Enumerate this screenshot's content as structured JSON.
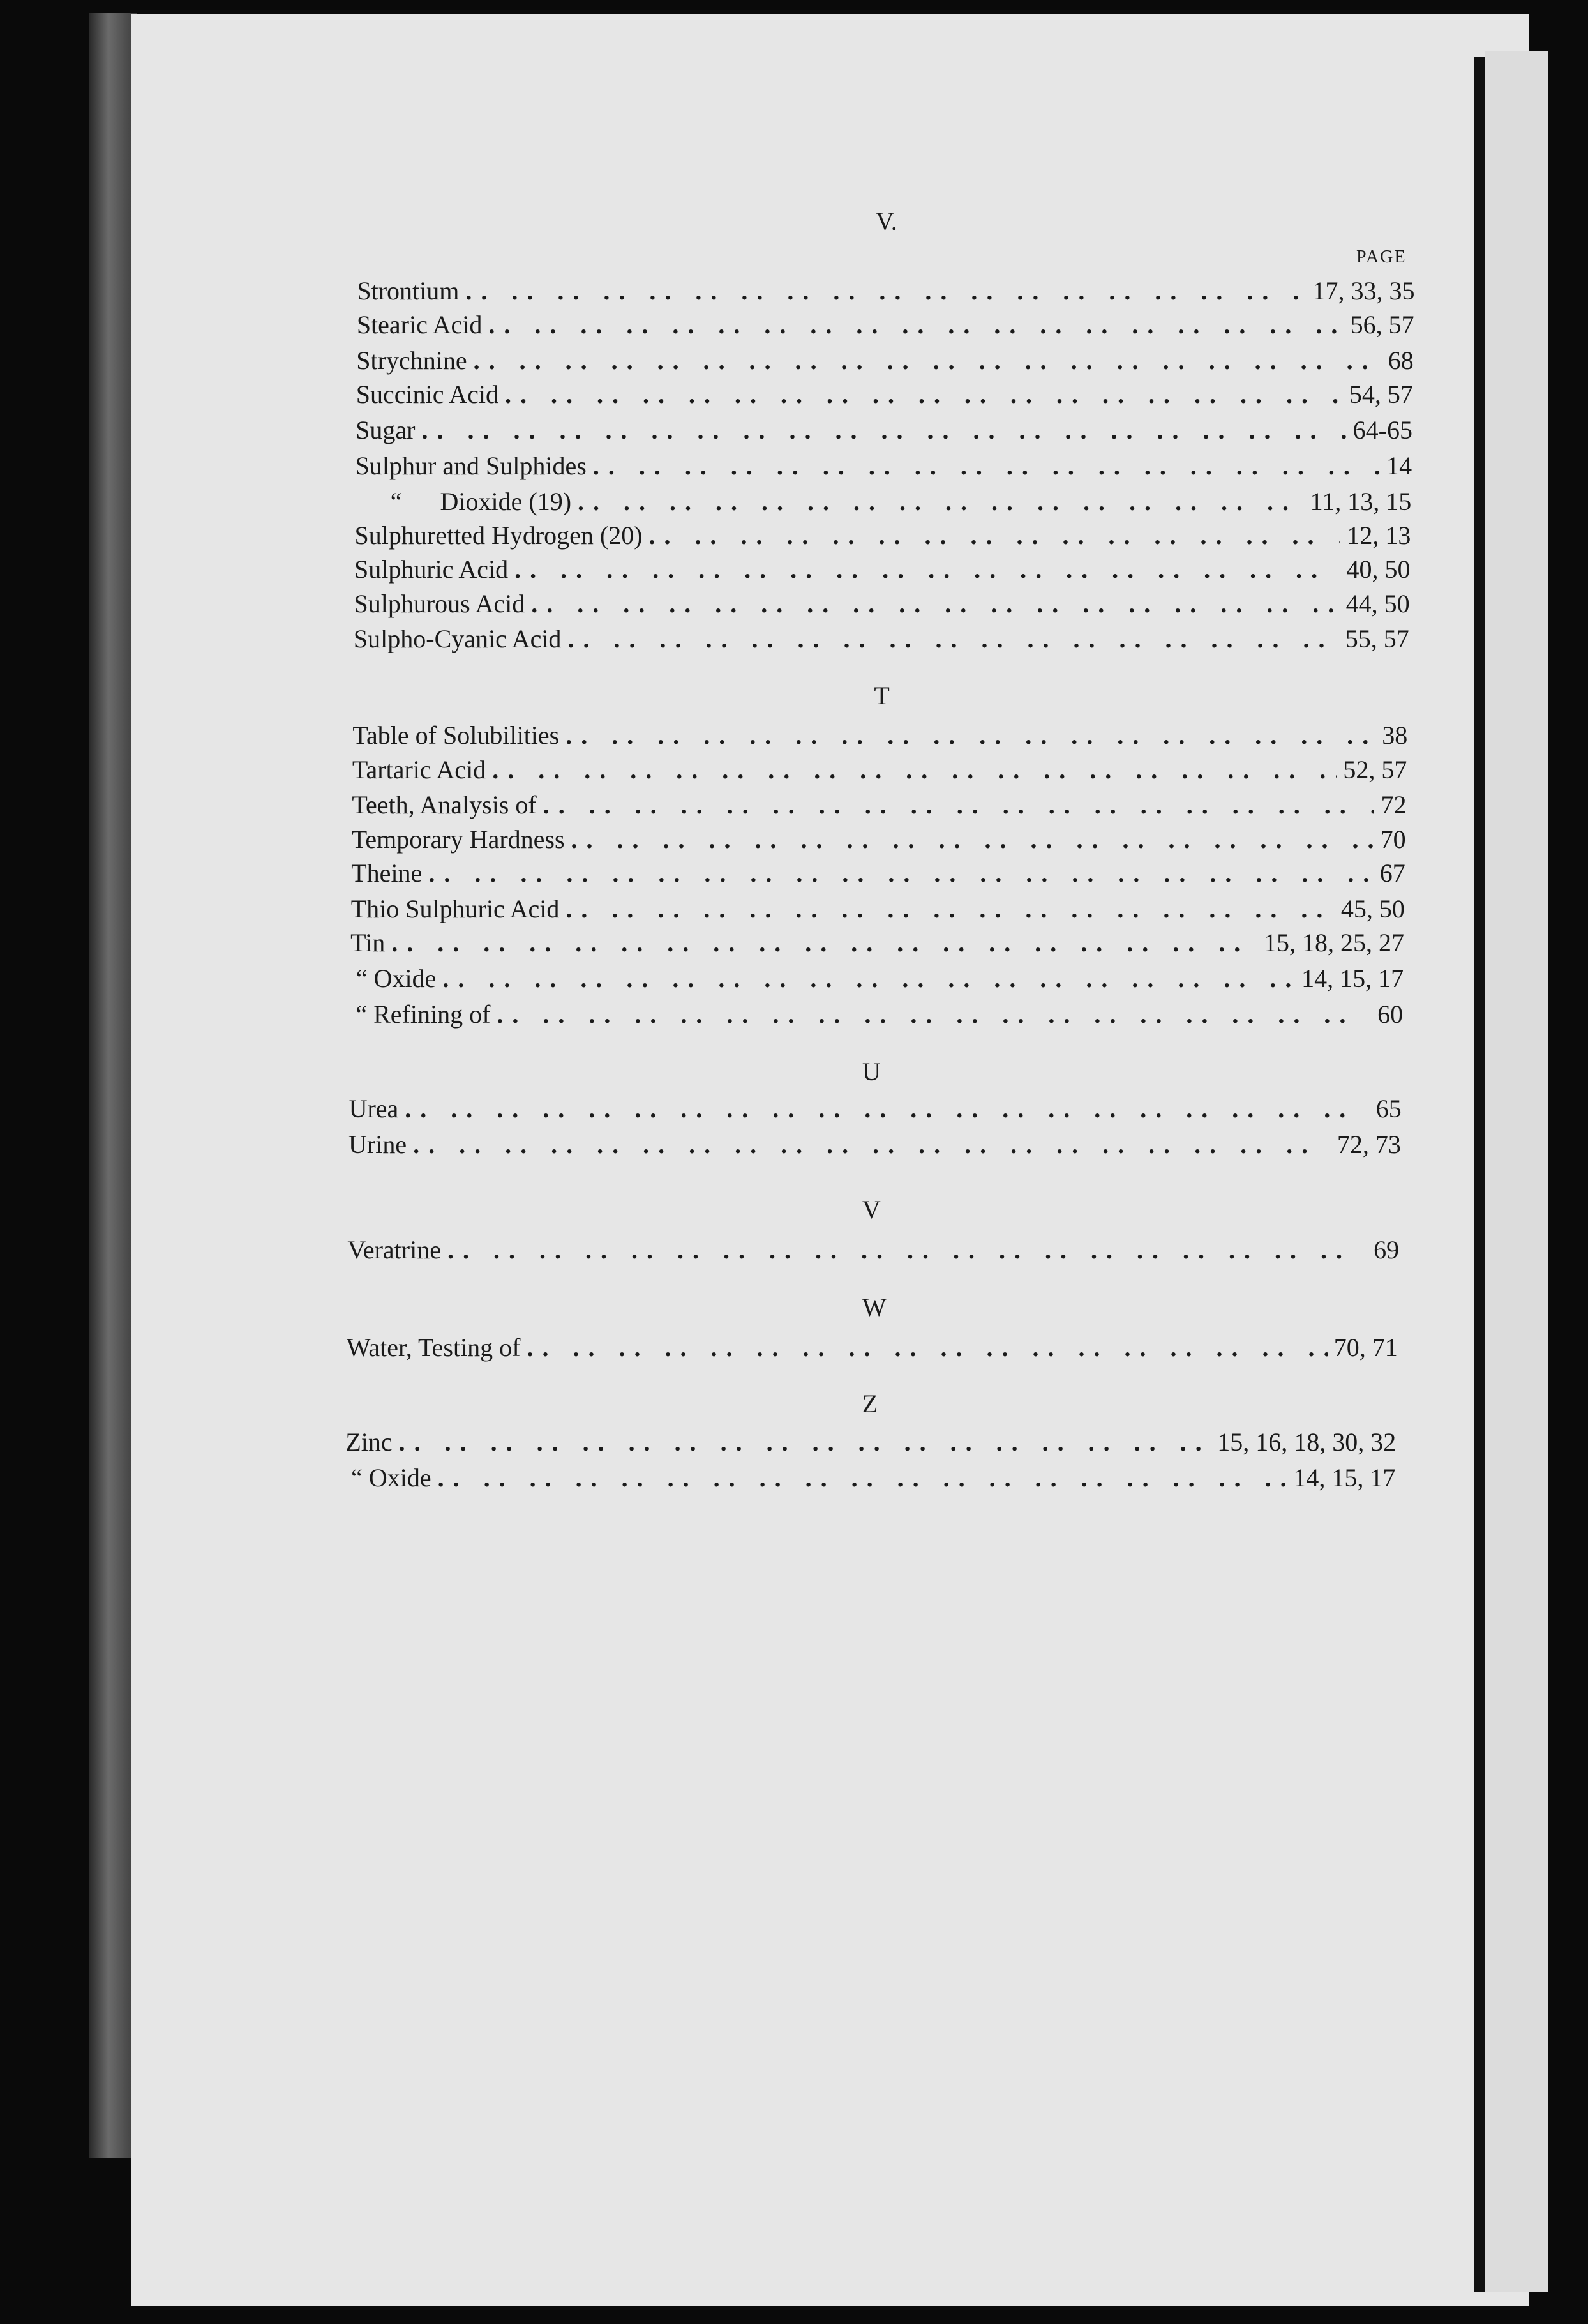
{
  "page": {
    "header": "V.",
    "page_column_label": "PAGE"
  },
  "sections": [
    {
      "letter": "",
      "entries": [
        {
          "name": "Strontium",
          "pages": "17, 33, 35"
        },
        {
          "name": "Stearic Acid",
          "pages": "56, 57"
        },
        {
          "name": "Strychnine",
          "pages": "68"
        },
        {
          "name": "Succinic Acid",
          "pages": "54, 57"
        },
        {
          "name": "Sugar",
          "pages": "64-65"
        },
        {
          "name": "Sulphur and Sulphides",
          "pages": "14"
        },
        {
          "name": "“      Dioxide (19)",
          "pages": "11, 13, 15",
          "indent": true
        },
        {
          "name": "Sulphuretted Hydrogen (20)",
          "pages": "12, 13"
        },
        {
          "name": "Sulphuric Acid",
          "pages": "40, 50"
        },
        {
          "name": "Sulphurous Acid",
          "pages": "44, 50"
        },
        {
          "name": "Sulpho-Cyanic Acid",
          "pages": "55, 57"
        }
      ]
    },
    {
      "letter": "T",
      "entries": [
        {
          "name": "Table of Solubilities",
          "pages": "38"
        },
        {
          "name": "Tartaric Acid",
          "pages": "52, 57"
        },
        {
          "name": "Teeth, Analysis of",
          "pages": "72"
        },
        {
          "name": "Temporary Hardness",
          "pages": "70"
        },
        {
          "name": "Theine",
          "pages": "67"
        },
        {
          "name": "Thio Sulphuric Acid",
          "pages": "45, 50"
        },
        {
          "name": "Tin",
          "pages": "15, 18, 25, 27"
        },
        {
          "name": "“ Oxide",
          "pages": "14, 15, 17",
          "indent": true
        },
        {
          "name": "“ Refining of",
          "pages": "60",
          "indent": true
        }
      ]
    },
    {
      "letter": "U",
      "entries": [
        {
          "name": "Urea",
          "pages": "65"
        },
        {
          "name": "Urine",
          "pages": "72, 73"
        }
      ]
    },
    {
      "letter": "V",
      "entries": [
        {
          "name": "Veratrine",
          "pages": "69"
        }
      ]
    },
    {
      "letter": "W",
      "entries": [
        {
          "name": "Water, Testing of",
          "pages": "70, 71"
        }
      ]
    },
    {
      "letter": "Z",
      "entries": [
        {
          "name": "Zinc",
          "pages": "15, 16, 18, 30, 32"
        },
        {
          "name": "“ Oxide",
          "pages": "14, 15, 17",
          "indent": true
        }
      ]
    }
  ]
}
